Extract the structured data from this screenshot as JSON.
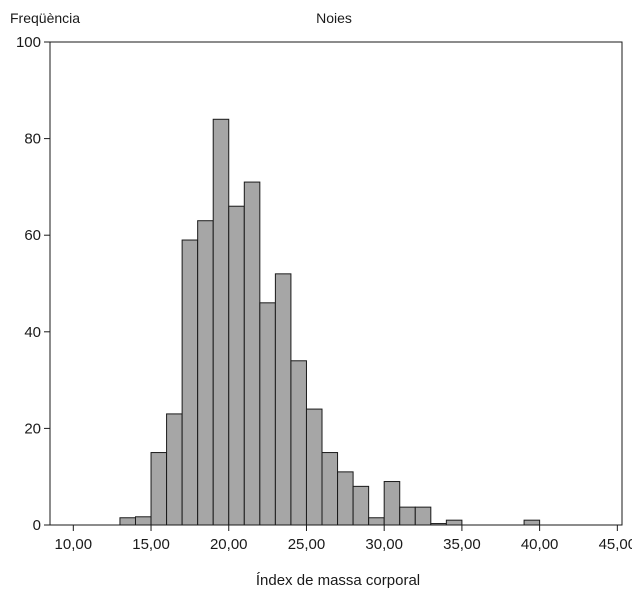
{
  "chart_data": {
    "type": "bar",
    "title": "Noies",
    "xlabel": "Índex de massa corporal",
    "ylabel": "Freqüència",
    "xlim": [
      8.5,
      45.3
    ],
    "ylim": [
      0,
      100
    ],
    "xticks": [
      10,
      15,
      20,
      25,
      30,
      35,
      40,
      45
    ],
    "xtick_labels": [
      "10,00",
      "15,00",
      "20,00",
      "25,00",
      "30,00",
      "35,00",
      "40,00",
      "45,00"
    ],
    "yticks": [
      0,
      20,
      40,
      60,
      80,
      100
    ],
    "ytick_labels": [
      "0",
      "20",
      "40",
      "60",
      "80",
      "100"
    ],
    "bin_width": 1,
    "bins": [
      {
        "x": 13,
        "value": 1.5
      },
      {
        "x": 14,
        "value": 1.7
      },
      {
        "x": 15,
        "value": 15
      },
      {
        "x": 16,
        "value": 23
      },
      {
        "x": 17,
        "value": 59
      },
      {
        "x": 18,
        "value": 63
      },
      {
        "x": 19,
        "value": 84
      },
      {
        "x": 20,
        "value": 66
      },
      {
        "x": 21,
        "value": 71
      },
      {
        "x": 22,
        "value": 46
      },
      {
        "x": 23,
        "value": 52
      },
      {
        "x": 24,
        "value": 34
      },
      {
        "x": 25,
        "value": 24
      },
      {
        "x": 26,
        "value": 15
      },
      {
        "x": 27,
        "value": 11
      },
      {
        "x": 28,
        "value": 8
      },
      {
        "x": 29,
        "value": 1.5
      },
      {
        "x": 30,
        "value": 9
      },
      {
        "x": 31,
        "value": 3.7
      },
      {
        "x": 32,
        "value": 3.7
      },
      {
        "x": 33,
        "value": 0.3
      },
      {
        "x": 34,
        "value": 1
      },
      {
        "x": 39,
        "value": 1
      }
    ],
    "bar_color": "#a6a6a6",
    "bar_stroke": "#1a1a1a",
    "grid": false
  }
}
